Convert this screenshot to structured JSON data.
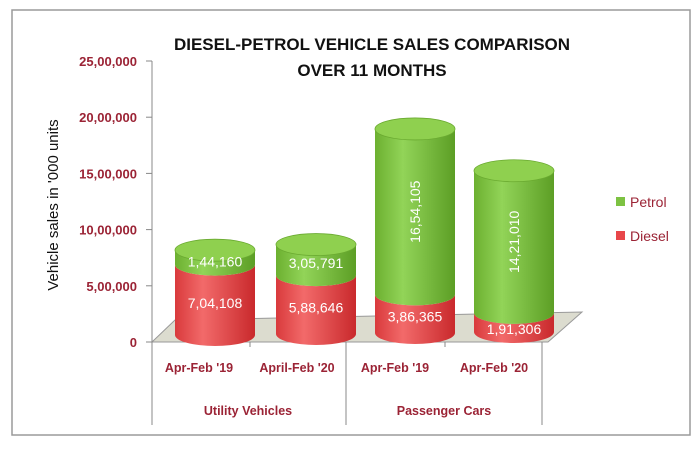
{
  "chart_data": {
    "type": "bar",
    "stacked": true,
    "style": "3d-cylinder",
    "title": "DIESEL-PETROL VEHICLE SALES COMPARISON",
    "subtitle": "OVER 11 MONTHS",
    "ylabel": "Vehicle sales in '000 units",
    "xlabel": "",
    "ylim": [
      0,
      2500000
    ],
    "yticks": [
      "0",
      "5,00,000",
      "10,00,000",
      "15,00,000",
      "20,00,000",
      "25,00,000"
    ],
    "ytick_values": [
      0,
      500000,
      1000000,
      1500000,
      2000000,
      2500000
    ],
    "grid": false,
    "legend_position": "right",
    "categories": [
      "Apr-Feb '19",
      "April-Feb '20",
      "Apr-Feb '19",
      "Apr-Feb '20"
    ],
    "groups": [
      {
        "label": "Utility Vehicles",
        "categories": [
          0,
          1
        ]
      },
      {
        "label": "Passenger Cars",
        "categories": [
          2,
          3
        ]
      }
    ],
    "series": [
      {
        "name": "Diesel",
        "color": "#e8474a",
        "values": [
          704108,
          588646,
          386365,
          191306
        ],
        "labels": [
          "7,04,108",
          "5,88,646",
          "3,86,365",
          "1,91,306"
        ]
      },
      {
        "name": "Petrol",
        "color": "#7dc242",
        "values": [
          144160,
          305791,
          1654105,
          1421010
        ],
        "labels": [
          "1,44,160",
          "3,05,791",
          "16,54,105",
          "14,21,010"
        ]
      }
    ]
  }
}
